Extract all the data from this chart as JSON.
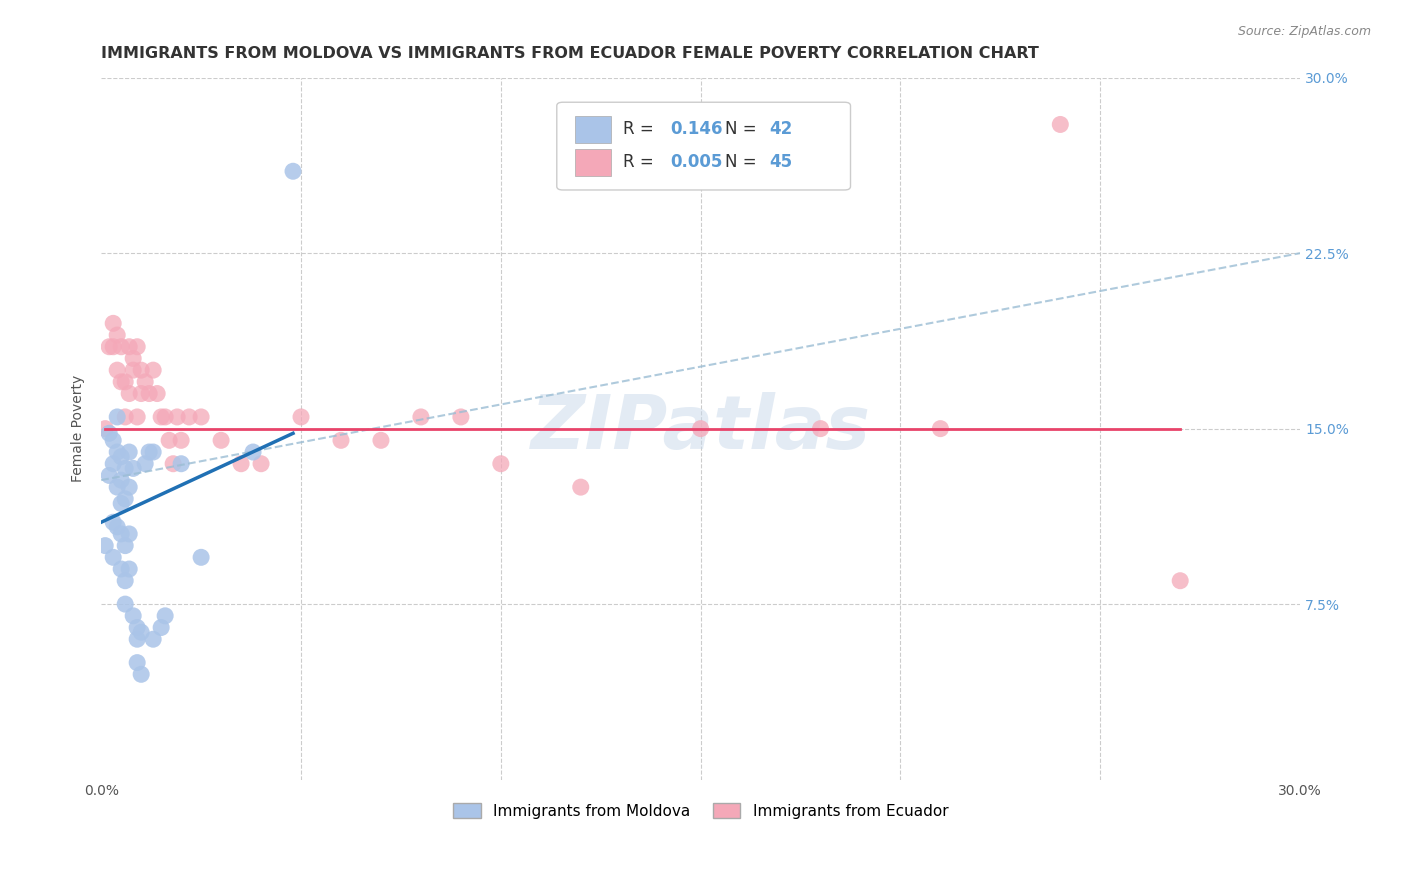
{
  "title": "IMMIGRANTS FROM MOLDOVA VS IMMIGRANTS FROM ECUADOR FEMALE POVERTY CORRELATION CHART",
  "source": "Source: ZipAtlas.com",
  "ylabel": "Female Poverty",
  "xlim": [
    0.0,
    0.3
  ],
  "ylim": [
    0.0,
    0.3
  ],
  "xticks": [
    0.0,
    0.05,
    0.1,
    0.15,
    0.2,
    0.25,
    0.3
  ],
  "xtick_labels": [
    "0.0%",
    "",
    "",
    "",
    "",
    "",
    "30.0%"
  ],
  "yticks": [
    0.0,
    0.075,
    0.15,
    0.225,
    0.3
  ],
  "ytick_labels": [
    "",
    "7.5%",
    "15.0%",
    "22.5%",
    "30.0%"
  ],
  "grid_color": "#cccccc",
  "legend_R1": "0.146",
  "legend_N1": "42",
  "legend_R2": "0.005",
  "legend_N2": "45",
  "label1": "Immigrants from Moldova",
  "label2": "Immigrants from Ecuador",
  "color1": "#aac4e8",
  "color2": "#f4a8b8",
  "line_color1": "#2070b4",
  "line_color2": "#e8436a",
  "dashed_line_color": "#9bbdd4",
  "watermark": "ZIPatlas",
  "moldova_x": [
    0.001,
    0.002,
    0.002,
    0.003,
    0.003,
    0.003,
    0.003,
    0.004,
    0.004,
    0.004,
    0.004,
    0.005,
    0.005,
    0.005,
    0.005,
    0.005,
    0.006,
    0.006,
    0.006,
    0.006,
    0.006,
    0.007,
    0.007,
    0.007,
    0.007,
    0.008,
    0.008,
    0.009,
    0.009,
    0.009,
    0.01,
    0.01,
    0.011,
    0.012,
    0.013,
    0.013,
    0.015,
    0.016,
    0.02,
    0.025,
    0.038,
    0.048
  ],
  "moldova_y": [
    0.1,
    0.148,
    0.13,
    0.145,
    0.135,
    0.11,
    0.095,
    0.14,
    0.125,
    0.155,
    0.108,
    0.138,
    0.128,
    0.118,
    0.105,
    0.09,
    0.133,
    0.12,
    0.1,
    0.085,
    0.075,
    0.14,
    0.125,
    0.105,
    0.09,
    0.133,
    0.07,
    0.065,
    0.06,
    0.05,
    0.063,
    0.045,
    0.135,
    0.14,
    0.14,
    0.06,
    0.065,
    0.07,
    0.135,
    0.095,
    0.14,
    0.26
  ],
  "ecuador_x": [
    0.001,
    0.002,
    0.003,
    0.003,
    0.004,
    0.004,
    0.005,
    0.005,
    0.006,
    0.006,
    0.007,
    0.007,
    0.008,
    0.008,
    0.009,
    0.009,
    0.01,
    0.01,
    0.011,
    0.012,
    0.013,
    0.014,
    0.015,
    0.016,
    0.017,
    0.018,
    0.019,
    0.02,
    0.022,
    0.025,
    0.03,
    0.035,
    0.04,
    0.05,
    0.06,
    0.07,
    0.08,
    0.09,
    0.1,
    0.12,
    0.15,
    0.18,
    0.21,
    0.24,
    0.27
  ],
  "ecuador_y": [
    0.15,
    0.185,
    0.195,
    0.185,
    0.19,
    0.175,
    0.185,
    0.17,
    0.155,
    0.17,
    0.185,
    0.165,
    0.18,
    0.175,
    0.185,
    0.155,
    0.165,
    0.175,
    0.17,
    0.165,
    0.175,
    0.165,
    0.155,
    0.155,
    0.145,
    0.135,
    0.155,
    0.145,
    0.155,
    0.155,
    0.145,
    0.135,
    0.135,
    0.155,
    0.145,
    0.145,
    0.155,
    0.155,
    0.135,
    0.125,
    0.15,
    0.15,
    0.15,
    0.28,
    0.085
  ],
  "background_color": "#ffffff",
  "title_fontsize": 11.5,
  "axis_label_fontsize": 10,
  "tick_fontsize": 10,
  "right_tick_color": "#5b9bd5",
  "moldova_line_x": [
    0.0,
    0.048
  ],
  "moldova_line_y": [
    0.11,
    0.148
  ],
  "ecuador_line_x": [
    0.001,
    0.27
  ],
  "ecuador_line_y": [
    0.15,
    0.15
  ],
  "dashed_line_x": [
    0.0,
    0.3
  ],
  "dashed_line_y": [
    0.128,
    0.225
  ]
}
